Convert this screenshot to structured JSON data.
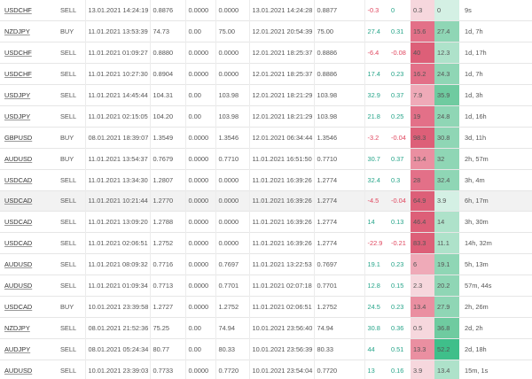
{
  "colors": {
    "positive": "#27a58a",
    "negative": "#e0475f",
    "mae_scale": [
      "#f6d7dd",
      "#efaab8",
      "#ea8fa1",
      "#e37088",
      "#dd5f78"
    ],
    "mfe_scale": [
      "#d4f0e4",
      "#aee2ca",
      "#8fd6b5",
      "#6fcba0",
      "#3fbf8a"
    ]
  },
  "rows": [
    {
      "symbol": "USDCHF",
      "side": "SELL",
      "open_time": "13.01.2021 14:24:19",
      "open_price": "0.8876",
      "sl": "0.0000",
      "tp": "0.0000",
      "close_time": "13.01.2021 14:24:28",
      "close_price": "0.8877",
      "pips": "-0.3",
      "pct": "0",
      "mae": "0.3",
      "mae_level": 0,
      "mfe": "0",
      "mfe_level": 0,
      "duration": "9s"
    },
    {
      "symbol": "NZDJPY",
      "side": "BUY",
      "open_time": "11.01.2021 13:53:39",
      "open_price": "74.73",
      "sl": "0.00",
      "tp": "75.00",
      "close_time": "12.01.2021 20:54:39",
      "close_price": "75.00",
      "pips": "27.4",
      "pct": "0.31",
      "mae": "15.6",
      "mae_level": 3,
      "mfe": "27.4",
      "mfe_level": 2,
      "duration": "1d, 7h"
    },
    {
      "symbol": "USDCHF",
      "side": "SELL",
      "open_time": "11.01.2021 01:09:27",
      "open_price": "0.8880",
      "sl": "0.0000",
      "tp": "0.0000",
      "close_time": "12.01.2021 18:25:37",
      "close_price": "0.8886",
      "pips": "-6.4",
      "pct": "-0.08",
      "mae": "40",
      "mae_level": 4,
      "mfe": "12.3",
      "mfe_level": 1,
      "duration": "1d, 17h"
    },
    {
      "symbol": "USDCHF",
      "side": "SELL",
      "open_time": "11.01.2021 10:27:30",
      "open_price": "0.8904",
      "sl": "0.0000",
      "tp": "0.0000",
      "close_time": "12.01.2021 18:25:37",
      "close_price": "0.8886",
      "pips": "17.4",
      "pct": "0.23",
      "mae": "16.2",
      "mae_level": 3,
      "mfe": "24.3",
      "mfe_level": 2,
      "duration": "1d, 7h"
    },
    {
      "symbol": "USDJPY",
      "side": "SELL",
      "open_time": "11.01.2021 14:45:44",
      "open_price": "104.31",
      "sl": "0.00",
      "tp": "103.98",
      "close_time": "12.01.2021 18:21:29",
      "close_price": "103.98",
      "pips": "32.9",
      "pct": "0.37",
      "mae": "7.9",
      "mae_level": 1,
      "mfe": "35.9",
      "mfe_level": 3,
      "duration": "1d, 3h"
    },
    {
      "symbol": "USDJPY",
      "side": "SELL",
      "open_time": "11.01.2021 02:15:05",
      "open_price": "104.20",
      "sl": "0.00",
      "tp": "103.98",
      "close_time": "12.01.2021 18:21:29",
      "close_price": "103.98",
      "pips": "21.8",
      "pct": "0.25",
      "mae": "19",
      "mae_level": 3,
      "mfe": "24.8",
      "mfe_level": 2,
      "duration": "1d, 16h"
    },
    {
      "symbol": "GBPUSD",
      "side": "BUY",
      "open_time": "08.01.2021 18:39:07",
      "open_price": "1.3549",
      "sl": "0.0000",
      "tp": "1.3546",
      "close_time": "12.01.2021 06:34:44",
      "close_price": "1.3546",
      "pips": "-3.2",
      "pct": "-0.04",
      "mae": "98.3",
      "mae_level": 4,
      "mfe": "30.8",
      "mfe_level": 2,
      "duration": "3d, 11h"
    },
    {
      "symbol": "AUDUSD",
      "side": "BUY",
      "open_time": "11.01.2021 13:54:37",
      "open_price": "0.7679",
      "sl": "0.0000",
      "tp": "0.7710",
      "close_time": "11.01.2021 16:51:50",
      "close_price": "0.7710",
      "pips": "30.7",
      "pct": "0.37",
      "mae": "13.4",
      "mae_level": 2,
      "mfe": "32",
      "mfe_level": 2,
      "duration": "2h, 57m"
    },
    {
      "symbol": "USDCAD",
      "side": "SELL",
      "open_time": "11.01.2021 13:34:30",
      "open_price": "1.2807",
      "sl": "0.0000",
      "tp": "0.0000",
      "close_time": "11.01.2021 16:39:26",
      "close_price": "1.2774",
      "pips": "32.4",
      "pct": "0.3",
      "mae": "28",
      "mae_level": 3,
      "mfe": "32.4",
      "mfe_level": 2,
      "duration": "3h, 4m"
    },
    {
      "symbol": "USDCAD",
      "side": "SELL",
      "open_time": "11.01.2021 10:21:44",
      "open_price": "1.2770",
      "sl": "0.0000",
      "tp": "0.0000",
      "close_time": "11.01.2021 16:39:26",
      "close_price": "1.2774",
      "pips": "-4.5",
      "pct": "-0.04",
      "mae": "64.9",
      "mae_level": 4,
      "mfe": "3.9",
      "mfe_level": 0,
      "duration": "6h, 17m"
    },
    {
      "symbol": "USDCAD",
      "side": "SELL",
      "open_time": "11.01.2021 13:09:20",
      "open_price": "1.2788",
      "sl": "0.0000",
      "tp": "0.0000",
      "close_time": "11.01.2021 16:39:26",
      "close_price": "1.2774",
      "pips": "14",
      "pct": "0.13",
      "mae": "46.4",
      "mae_level": 4,
      "mfe": "14",
      "mfe_level": 1,
      "duration": "3h, 30m"
    },
    {
      "symbol": "USDCAD",
      "side": "SELL",
      "open_time": "11.01.2021 02:06:51",
      "open_price": "1.2752",
      "sl": "0.0000",
      "tp": "0.0000",
      "close_time": "11.01.2021 16:39:26",
      "close_price": "1.2774",
      "pips": "-22.9",
      "pct": "-0.21",
      "mae": "83.3",
      "mae_level": 4,
      "mfe": "11.1",
      "mfe_level": 1,
      "duration": "14h, 32m"
    },
    {
      "symbol": "AUDUSD",
      "side": "SELL",
      "open_time": "11.01.2021 08:09:32",
      "open_price": "0.7716",
      "sl": "0.0000",
      "tp": "0.7697",
      "close_time": "11.01.2021 13:22:53",
      "close_price": "0.7697",
      "pips": "19.1",
      "pct": "0.23",
      "mae": "6",
      "mae_level": 1,
      "mfe": "19.1",
      "mfe_level": 2,
      "duration": "5h, 13m"
    },
    {
      "symbol": "AUDUSD",
      "side": "SELL",
      "open_time": "11.01.2021 01:09:34",
      "open_price": "0.7713",
      "sl": "0.0000",
      "tp": "0.7701",
      "close_time": "11.01.2021 02:07:18",
      "close_price": "0.7701",
      "pips": "12.8",
      "pct": "0.15",
      "mae": "2.3",
      "mae_level": 0,
      "mfe": "20.2",
      "mfe_level": 2,
      "duration": "57m, 44s"
    },
    {
      "symbol": "USDCAD",
      "side": "BUY",
      "open_time": "10.01.2021 23:39:58",
      "open_price": "1.2727",
      "sl": "0.0000",
      "tp": "1.2752",
      "close_time": "11.01.2021 02:06:51",
      "close_price": "1.2752",
      "pips": "24.5",
      "pct": "0.23",
      "mae": "13.4",
      "mae_level": 2,
      "mfe": "27.9",
      "mfe_level": 2,
      "duration": "2h, 26m"
    },
    {
      "symbol": "NZDJPY",
      "side": "SELL",
      "open_time": "08.01.2021 21:52:36",
      "open_price": "75.25",
      "sl": "0.00",
      "tp": "74.94",
      "close_time": "10.01.2021 23:56:40",
      "close_price": "74.94",
      "pips": "30.8",
      "pct": "0.36",
      "mae": "0.5",
      "mae_level": 0,
      "mfe": "36.8",
      "mfe_level": 3,
      "duration": "2d, 2h"
    },
    {
      "symbol": "AUDJPY",
      "side": "SELL",
      "open_time": "08.01.2021 05:24:34",
      "open_price": "80.77",
      "sl": "0.00",
      "tp": "80.33",
      "close_time": "10.01.2021 23:56:39",
      "close_price": "80.33",
      "pips": "44",
      "pct": "0.51",
      "mae": "13.3",
      "mae_level": 2,
      "mfe": "52.2",
      "mfe_level": 4,
      "duration": "2d, 18h"
    },
    {
      "symbol": "AUDUSD",
      "side": "SELL",
      "open_time": "10.01.2021 23:39:03",
      "open_price": "0.7733",
      "sl": "0.0000",
      "tp": "0.7720",
      "close_time": "10.01.2021 23:54:04",
      "close_price": "0.7720",
      "pips": "13",
      "pct": "0.16",
      "mae": "3.9",
      "mae_level": 0,
      "mfe": "13.4",
      "mfe_level": 1,
      "duration": "15m, 1s"
    }
  ]
}
